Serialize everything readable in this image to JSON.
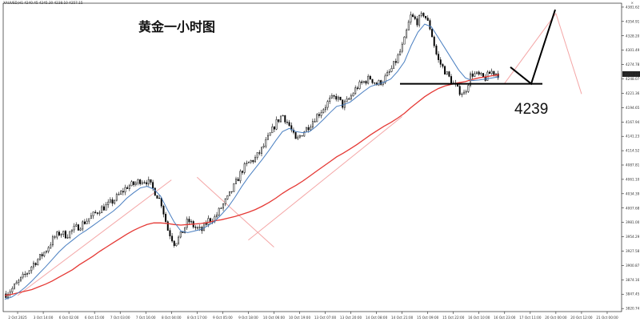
{
  "window": {
    "symbol_header": "XAUUSD,H1  4240.45 4245.30 4238.10 4257.15",
    "close_button": "×"
  },
  "chart_data": {
    "type": "candlestick",
    "symbol": "XAUUSD",
    "timeframe": "H1",
    "title": "黄金一小时图",
    "level_label": "4239",
    "level": 4239,
    "last_price": 4257.12,
    "ylim": [
      3815,
      4383
    ],
    "y_ticks": [
      4381.62,
      4354.91,
      4328.2,
      4301.49,
      4274.78,
      4248.07,
      4221.36,
      4194.65,
      4167.94,
      4141.23,
      4114.52,
      4087.81,
      4061.1,
      4034.39,
      4007.68,
      3981.0,
      3954.29,
      3927.58,
      3900.87,
      3874.16,
      3847.45,
      3820.74
    ],
    "x_labels": [
      "2 Oct 2025",
      "3 Oct 14:00",
      "6 Oct 02:00",
      "6 Oct 15:00",
      "7 Oct 03:00",
      "7 Oct 16:00",
      "8 Oct 04:00",
      "8 Oct 17:00",
      "9 Oct 05:00",
      "9 Oct 18:00",
      "10 Oct 06:00",
      "10 Oct 19:00",
      "13 Oct 07:00",
      "13 Oct 20:00",
      "14 Oct 08:00",
      "14 Oct 21:00",
      "15 Oct 09:00",
      "15 Oct 22:00",
      "16 Oct 10:00",
      "16 Oct 23:00",
      "17 Oct 11:00",
      "20 Oct 00:00",
      "20 Oct 12:00",
      "21 Oct 00:00"
    ],
    "close_path": [
      3848,
      3858,
      3872,
      3885,
      3903,
      3915,
      3930,
      3950,
      3962,
      3957,
      3968,
      3975,
      3985,
      3995,
      4006,
      4012,
      4022,
      4035,
      4048,
      4052,
      4060,
      4058,
      4040,
      4020,
      3968,
      3942,
      3958,
      3985,
      3972,
      3965,
      3985,
      3990,
      4010,
      4028,
      4052,
      4078,
      4092,
      4100,
      4118,
      4140,
      4165,
      4182,
      4162,
      4132,
      4148,
      4162,
      4178,
      4192,
      4208,
      4215,
      4198,
      4212,
      4232,
      4242,
      4250,
      4238,
      4246,
      4262,
      4285,
      4315,
      4365,
      4355,
      4370,
      4340,
      4285,
      4265,
      4245,
      4228,
      4220,
      4258,
      4255,
      4248,
      4262,
      4257
    ],
    "series": [
      {
        "name": "MA",
        "color": "#e53935",
        "values": [
          3845,
          3847,
          3850,
          3853,
          3856,
          3861,
          3866,
          3872,
          3879,
          3886,
          3893,
          3902,
          3910,
          3918,
          3927,
          3935,
          3943,
          3951,
          3959,
          3966,
          3972,
          3977,
          3980,
          3980,
          3979,
          3977,
          3976,
          3977,
          3978,
          3979,
          3981,
          3984,
          3986,
          3989,
          3992,
          3996,
          4000,
          4005,
          4011,
          4018,
          4026,
          4035,
          4043,
          4050,
          4058,
          4067,
          4076,
          4085,
          4094,
          4103,
          4110,
          4118,
          4126,
          4135,
          4144,
          4152,
          4160,
          4167,
          4175,
          4184,
          4195,
          4205,
          4215,
          4223,
          4230,
          4235,
          4238,
          4241,
          4243,
          4247,
          4250,
          4252,
          4254,
          4256
        ]
      },
      {
        "name": "MA",
        "color": "#4a7fc1",
        "values": [
          3838,
          3842,
          3850,
          3860,
          3872,
          3885,
          3898,
          3912,
          3926,
          3938,
          3948,
          3958,
          3966,
          3975,
          3984,
          3993,
          4002,
          4013,
          4026,
          4036,
          4045,
          4048,
          4043,
          4030,
          4005,
          3982,
          3965,
          3962,
          3965,
          3968,
          3975,
          3983,
          3996,
          4010,
          4028,
          4048,
          4066,
          4082,
          4098,
          4115,
          4133,
          4150,
          4156,
          4150,
          4148,
          4150,
          4160,
          4172,
          4185,
          4197,
          4200,
          4205,
          4215,
          4225,
          4234,
          4238,
          4242,
          4248,
          4262,
          4280,
          4310,
          4335,
          4350,
          4345,
          4325,
          4305,
          4285,
          4265,
          4250,
          4245,
          4246,
          4248,
          4250,
          4252
        ]
      }
    ],
    "annotation_lines": [
      {
        "color": "#f4a6a6",
        "from": [
          "2 Oct 2025",
          3845
        ],
        "to": [
          "8 Oct 04:00",
          4060
        ]
      },
      {
        "color": "#f4a6a6",
        "from": [
          "9 Oct 18:00",
          3948
        ],
        "to": [
          "14 Oct 21:00",
          4178
        ]
      },
      {
        "color": "#f4a6a6",
        "from": [
          "16 Oct 23:00",
          4240
        ],
        "to": [
          "20 Oct 00:00",
          4370
        ]
      },
      {
        "color": "#f4a6a6",
        "from": [
          "20 Oct 00:00",
          4370
        ],
        "to": [
          "20 Oct 12:00",
          4220
        ]
      },
      {
        "color": "#f4a6a6",
        "from": [
          "8 Oct 17:00",
          4065
        ],
        "to": [
          "10 Oct 06:00",
          3935
        ]
      }
    ],
    "forecast_path": [
      4270,
      4239,
      4377
    ],
    "grid": false
  }
}
